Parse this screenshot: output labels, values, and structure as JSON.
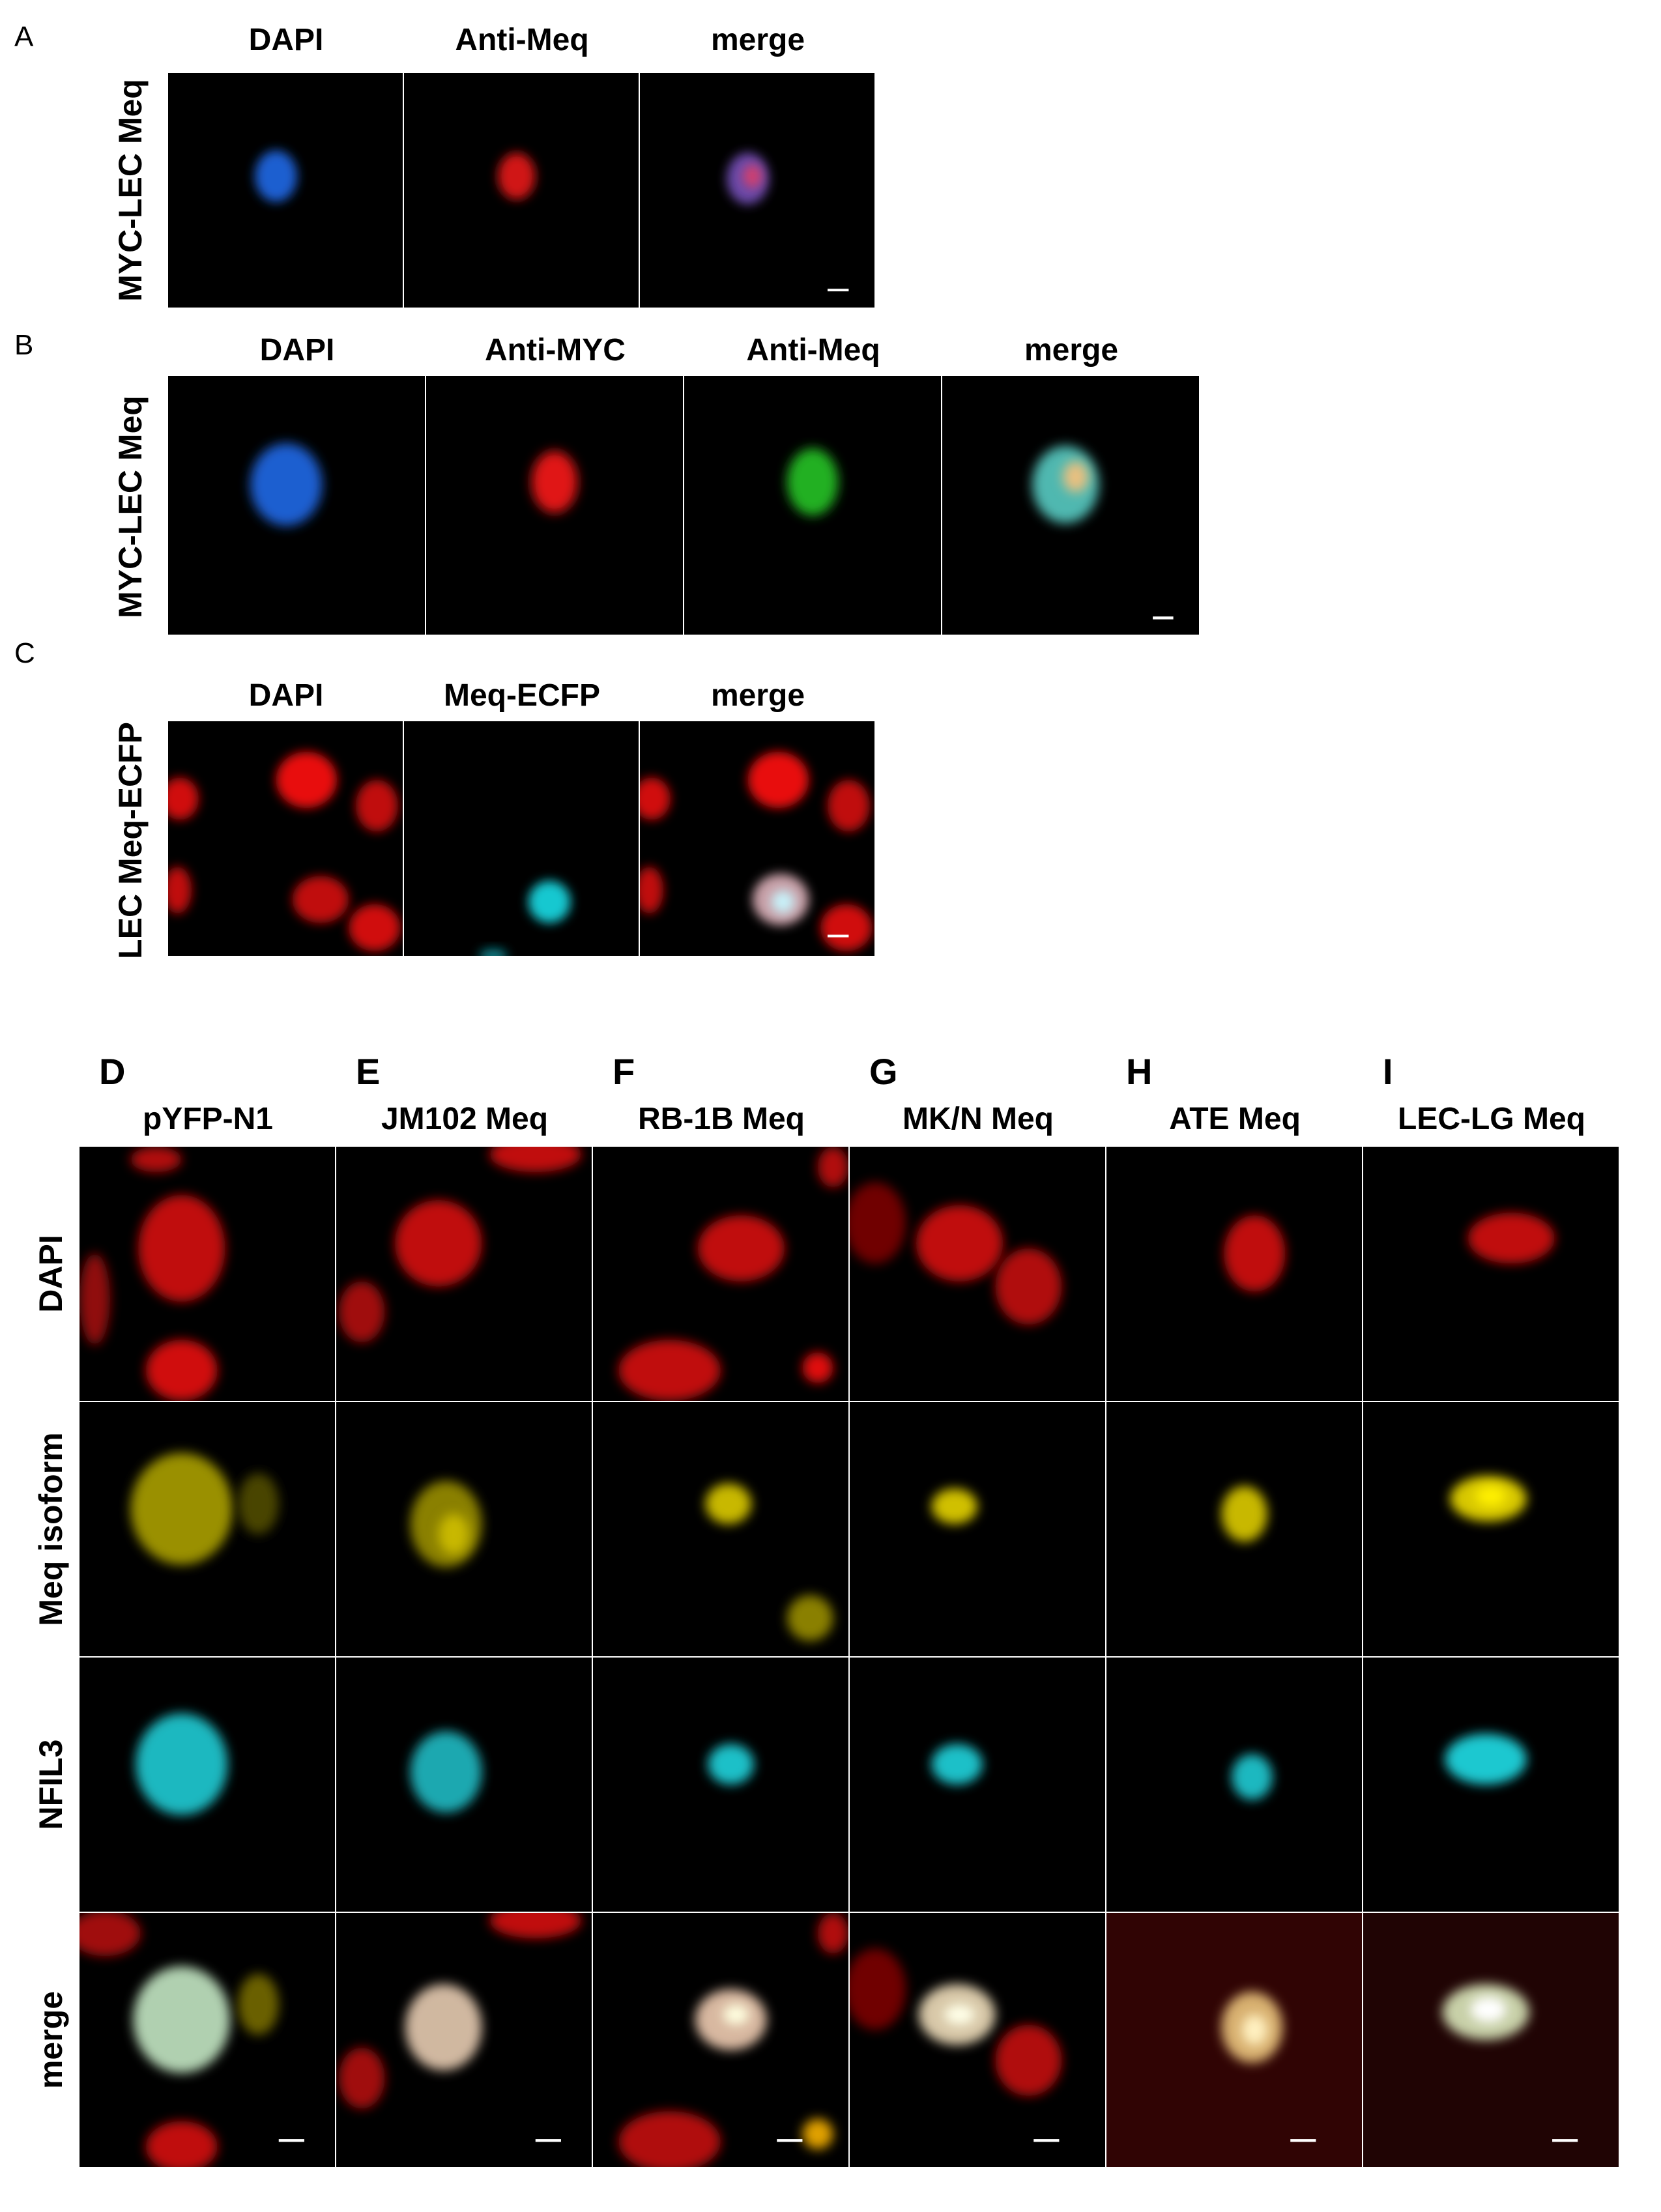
{
  "figure": {
    "panel_a": {
      "letter": "A",
      "row_label": "MYC-LEC Meq",
      "columns": [
        "DAPI",
        "Anti-Meq",
        "merge"
      ]
    },
    "panel_b": {
      "letter": "B",
      "row_label": "MYC-LEC Meq",
      "columns": [
        "DAPI",
        "Anti-MYC",
        "Anti-Meq",
        "merge"
      ]
    },
    "panel_c": {
      "letter": "C",
      "row_label": "LEC Meq-ECFP",
      "columns": [
        "DAPI",
        "Meq-ECFP",
        "merge"
      ]
    },
    "grid": {
      "column_letters": [
        "D",
        "E",
        "F",
        "G",
        "H",
        "I"
      ],
      "column_titles": [
        "pYFP-N1",
        "JM102 Meq",
        "RB-1B Meq",
        "MK/N Meq",
        "ATE Meq",
        "LEC-LG Meq"
      ],
      "row_labels": [
        "DAPI",
        "Meq isoform",
        "NFIL3",
        "merge"
      ]
    }
  },
  "colors": {
    "dapi_blue": "#1e5fd0",
    "red": "#e01818",
    "green": "#22c022",
    "yellow": "#e0d000",
    "cyan": "#20d0d8",
    "scale_bar": "#ffffff"
  }
}
